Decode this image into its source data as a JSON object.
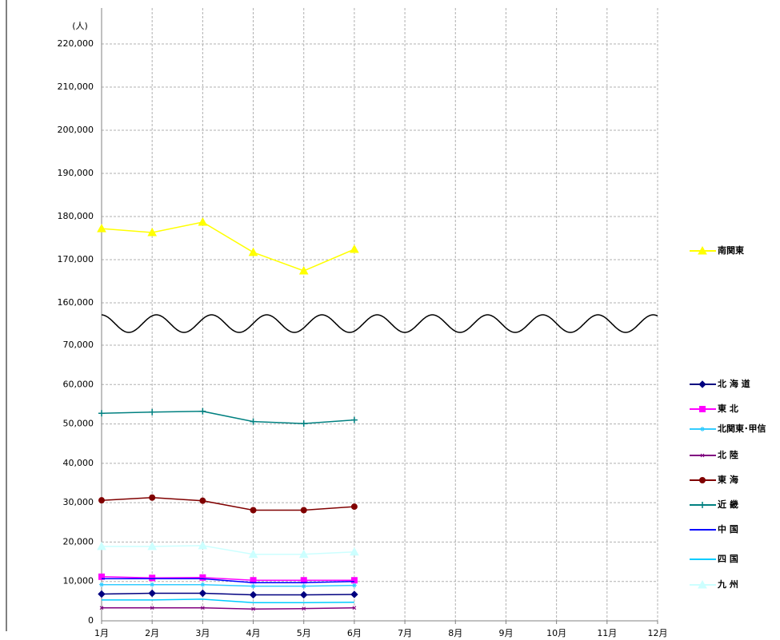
{
  "chart_data": {
    "type": "line",
    "y_unit_label": "(人)",
    "categories": [
      "1月",
      "2月",
      "3月",
      "4月",
      "5月",
      "6月",
      "7月",
      "8月",
      "9月",
      "10月",
      "11月",
      "12月"
    ],
    "ylim": [
      0,
      70000
    ],
    "yticks": [
      0,
      {
        "value": 10000,
        "label": "10,000"
      },
      {
        "value": 20000,
        "label": "20,000"
      },
      {
        "value": 30000,
        "label": "30,000"
      },
      {
        "value": 40000,
        "label": "40,000"
      },
      {
        "value": 50000,
        "label": "50,000"
      },
      {
        "value": 60000,
        "label": "60,000"
      },
      {
        "value": 70000,
        "label": "70,000"
      }
    ],
    "y2lim": [
      160000,
      220000
    ],
    "y2ticks": [
      {
        "value": 160000,
        "label": "160,000"
      },
      {
        "value": 170000,
        "label": "170,000"
      },
      {
        "value": 180000,
        "label": "180,000"
      },
      {
        "value": 190000,
        "label": "190,000"
      },
      {
        "value": 200000,
        "label": "200,000"
      },
      {
        "value": 210000,
        "label": "210,000"
      },
      {
        "value": 220000,
        "label": "220,000"
      }
    ],
    "grid": true,
    "series": [
      {
        "name": "南関東",
        "color": "#ffff00",
        "marker": "triangle",
        "axis": "y2",
        "values": [
          177200,
          176300,
          178700,
          171700,
          167400,
          172400,
          null,
          null,
          null,
          null,
          null,
          null
        ]
      },
      {
        "name": "北 海 道",
        "color": "#000080",
        "marker": "diamond",
        "values": [
          6800,
          7000,
          7000,
          6600,
          6600,
          6700,
          null,
          null,
          null,
          null,
          null,
          null
        ]
      },
      {
        "name": "東 北",
        "color": "#ff00ff",
        "marker": "square",
        "values": [
          11200,
          10900,
          11000,
          10300,
          10300,
          10300,
          null,
          null,
          null,
          null,
          null,
          null
        ]
      },
      {
        "name": "北関東･甲信",
        "color": "#33ccff",
        "marker": "star",
        "values": [
          9200,
          9200,
          9200,
          8800,
          8800,
          9000,
          null,
          null,
          null,
          null,
          null,
          null
        ]
      },
      {
        "name": "北 陸",
        "color": "#800080",
        "marker": "x",
        "values": [
          3300,
          3300,
          3300,
          3000,
          3100,
          3300,
          null,
          null,
          null,
          null,
          null,
          null
        ]
      },
      {
        "name": "東 海",
        "color": "#800000",
        "marker": "circle",
        "values": [
          30600,
          31300,
          30500,
          28100,
          28100,
          29000,
          null,
          null,
          null,
          null,
          null,
          null
        ]
      },
      {
        "name": "近 畿",
        "color": "#008080",
        "marker": "plus",
        "values": [
          52700,
          53000,
          53200,
          50600,
          50100,
          51000,
          null,
          null,
          null,
          null,
          null,
          null
        ]
      },
      {
        "name": "中 国",
        "color": "#0000ff",
        "marker": "none",
        "values": [
          10700,
          10700,
          10700,
          9700,
          9700,
          10000,
          null,
          null,
          null,
          null,
          null,
          null
        ]
      },
      {
        "name": "四 国",
        "color": "#00ccff",
        "marker": "none",
        "values": [
          5300,
          5300,
          5500,
          4600,
          4600,
          4700,
          null,
          null,
          null,
          null,
          null,
          null
        ]
      },
      {
        "name": "九 州",
        "color": "#ccffff",
        "marker": "triangle",
        "values": [
          18900,
          18900,
          19100,
          16900,
          16900,
          17500,
          null,
          null,
          null,
          null,
          null,
          null
        ]
      }
    ]
  }
}
